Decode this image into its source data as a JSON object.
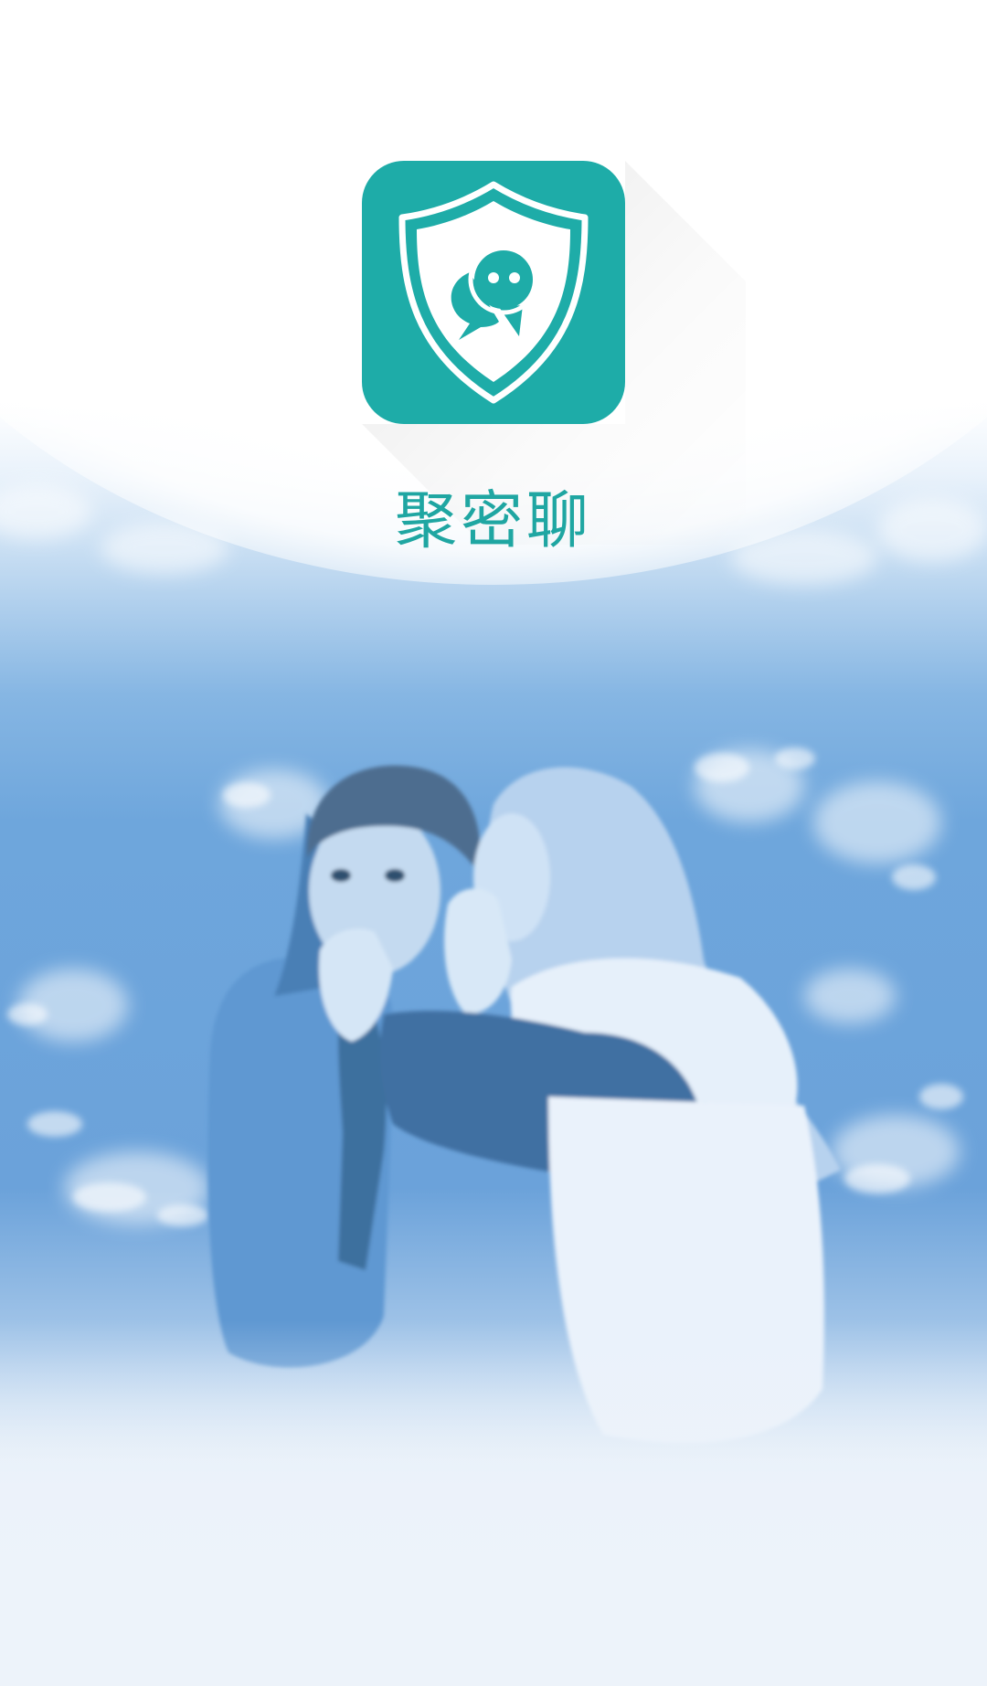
{
  "app": {
    "name": "聚密聊",
    "icon": "shield-chat-icon",
    "brand_color": "#1eaca8",
    "text_color": "#1fa6a2"
  },
  "background": {
    "photo": "two-women-whispering-photo",
    "tint": "#6ba2da"
  }
}
